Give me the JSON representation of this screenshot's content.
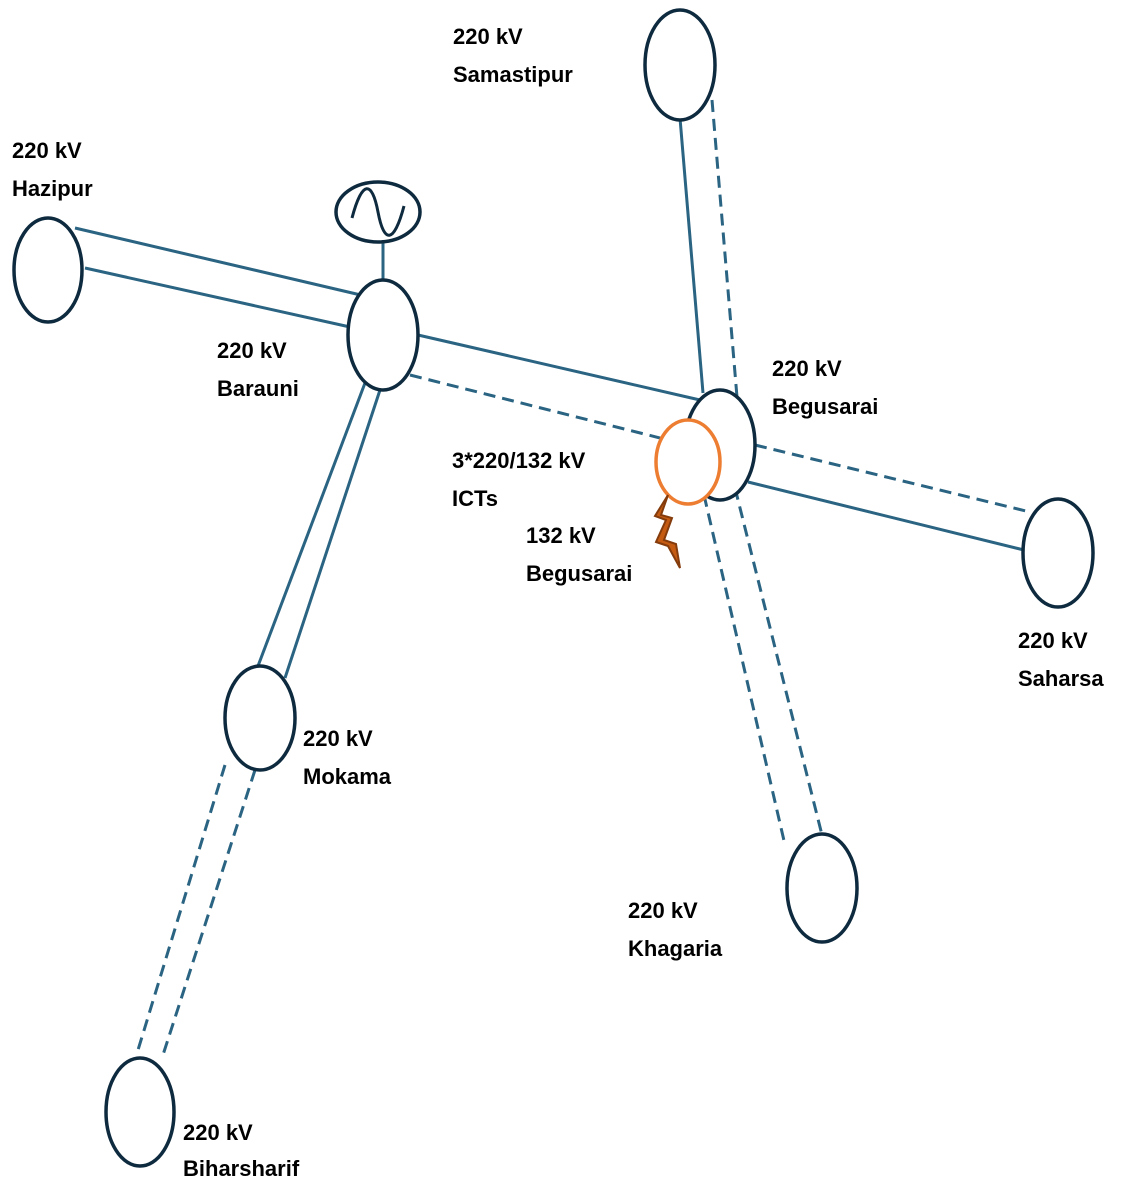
{
  "nodes": [
    {
      "voltage": "220 kV",
      "name": "Samastipur"
    },
    {
      "voltage": "220 kV",
      "name": "Hazipur"
    },
    {
      "voltage": "220 kV",
      "name": "Barauni"
    },
    {
      "voltage": "220 kV",
      "name": "Begusarai"
    },
    {
      "voltage": "3*220/132 kV",
      "name": "ICTs"
    },
    {
      "voltage": "132 kV",
      "name": "Begusarai"
    },
    {
      "voltage": "220 kV",
      "name": "Saharsa"
    },
    {
      "voltage": "220 kV",
      "name": "Mokama"
    },
    {
      "voltage": "220 kV",
      "name": "Khagaria"
    },
    {
      "voltage": "220 kV",
      "name": "Biharsharif"
    }
  ]
}
